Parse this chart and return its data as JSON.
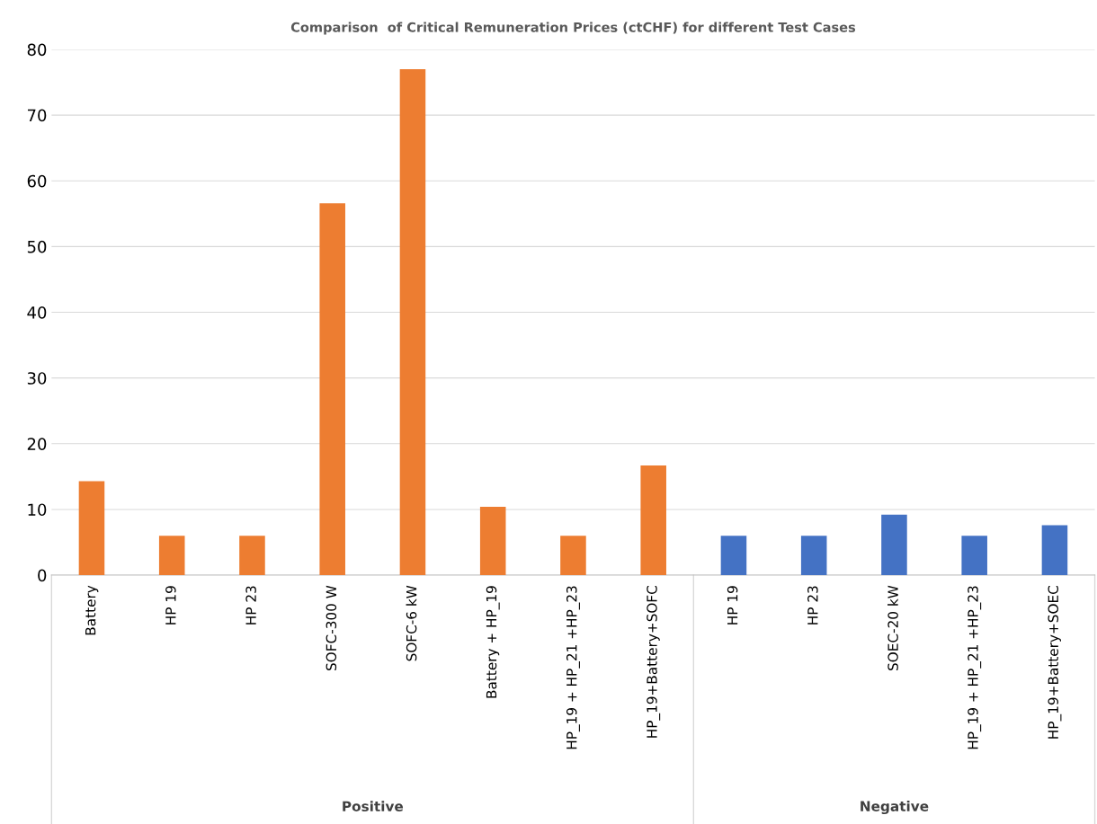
{
  "chart_data": {
    "type": "bar",
    "title": "Comparison  of Critical Remuneration Prices (ctCHF) for different Test Cases",
    "categories": [
      "Battery",
      "HP 19",
      "HP 23",
      "SOFC-300 W",
      "SOFC-6 kW",
      "Battery + HP_19",
      "HP_19 + HP_21 +HP_23",
      "HP_19+Battery+SOFC",
      "HP 19",
      "HP 23",
      "SOEC-20 kW",
      "HP_19 + HP_21 +HP_23",
      "HP_19+Battery+SOEC"
    ],
    "values": [
      14.3,
      6,
      6,
      56.6,
      77,
      10.4,
      6,
      16.7,
      6,
      6,
      9.2,
      6,
      7.6
    ],
    "colors": [
      "#ed7d31",
      "#ed7d31",
      "#ed7d31",
      "#ed7d31",
      "#ed7d31",
      "#ed7d31",
      "#ed7d31",
      "#ed7d31",
      "#4472c4",
      "#4472c4",
      "#4472c4",
      "#4472c4",
      "#4472c4"
    ],
    "annotations": [
      "Positive",
      "Negative"
    ],
    "ylim": [
      0,
      80
    ],
    "yticks": [
      0,
      10,
      20,
      30,
      40,
      50,
      60,
      70,
      80
    ],
    "grid": "y"
  }
}
